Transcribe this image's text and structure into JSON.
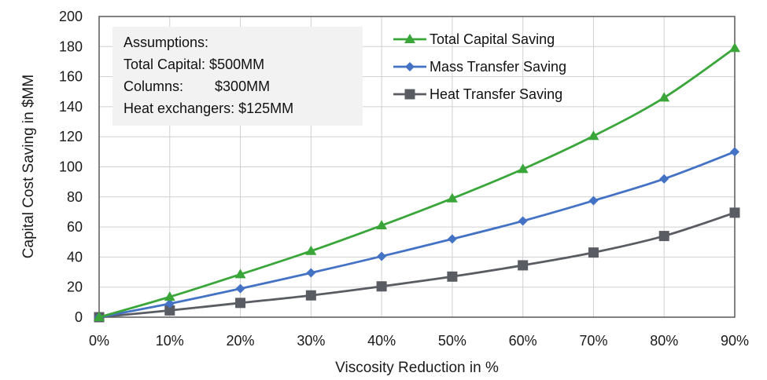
{
  "chart_data": {
    "type": "line",
    "title": "",
    "xlabel": "Viscosity Reduction in %",
    "ylabel": "Capital Cost Saving in $MM",
    "categories": [
      "0%",
      "10%",
      "20%",
      "30%",
      "40%",
      "50%",
      "60%",
      "70%",
      "80%",
      "90%"
    ],
    "x": [
      0,
      10,
      20,
      30,
      40,
      50,
      60,
      70,
      80,
      90
    ],
    "ylim": [
      0,
      200
    ],
    "yticks": [
      0,
      20,
      40,
      60,
      80,
      100,
      120,
      140,
      160,
      180,
      200
    ],
    "ytick_labels": [
      "0",
      "20",
      "40",
      "60",
      "80",
      "100",
      "120",
      "140",
      "160",
      "180",
      "200"
    ],
    "grid": true,
    "legend_position": "top-right",
    "series": [
      {
        "name": "Total Capital Saving",
        "color": "#3aa63a",
        "marker": "triangle",
        "values": [
          0,
          13.5,
          28.5,
          44,
          61,
          79,
          98.5,
          120.5,
          146,
          179
        ]
      },
      {
        "name": "Mass Transfer Saving",
        "color": "#4472c4",
        "marker": "diamond",
        "values": [
          0,
          9,
          19,
          29.5,
          40.5,
          52,
          64,
          77.5,
          92,
          110
        ]
      },
      {
        "name": "Heat Transfer Saving",
        "color": "#595c63",
        "marker": "square",
        "values": [
          0,
          4.5,
          9.5,
          14.5,
          20.5,
          27,
          34.5,
          43,
          54,
          69.5
        ]
      }
    ],
    "annotation": {
      "lines": [
        "Assumptions:",
        "Total Capital: $500MM",
        "Columns:        $300MM",
        "Heat exchangers: $125MM"
      ],
      "background": "#f2f2f2"
    }
  }
}
